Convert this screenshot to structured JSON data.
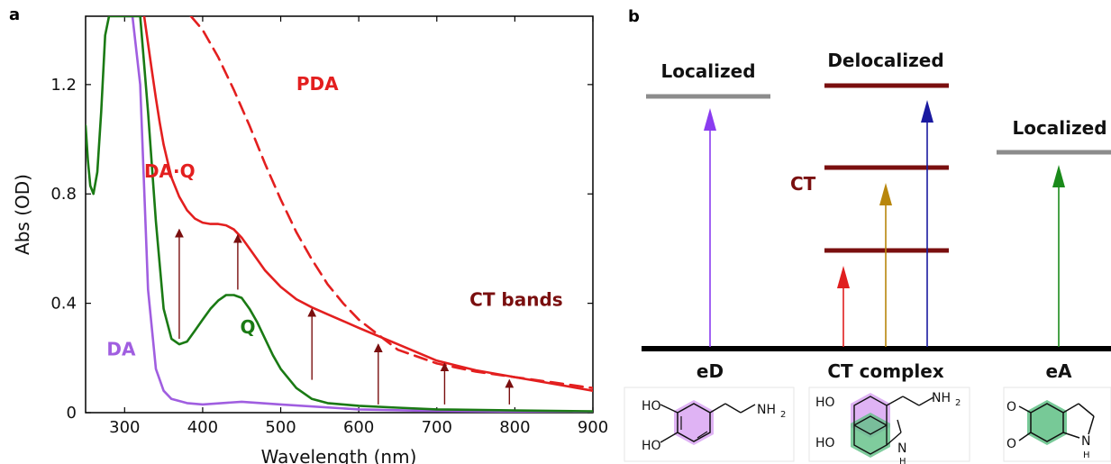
{
  "chart_data": [
    {
      "panel": "a",
      "type": "line",
      "xlabel": "Wavelength (nm)",
      "ylabel": "Abs (OD)",
      "xlim": [
        250,
        900
      ],
      "ylim": [
        0,
        1.45
      ],
      "xticks": [
        300,
        400,
        500,
        600,
        700,
        800,
        900
      ],
      "yticks": [
        0,
        0.4,
        0.8,
        1.2
      ],
      "grid": false,
      "series": [
        {
          "name": "DA",
          "color": "#a05ee0",
          "dash": false,
          "x": [
            300,
            310,
            320,
            330,
            340,
            350,
            360,
            380,
            400,
            450,
            500,
            600,
            700,
            800,
            900
          ],
          "y": [
            1.45,
            1.45,
            1.2,
            0.45,
            0.16,
            0.08,
            0.05,
            0.035,
            0.03,
            0.04,
            0.03,
            0.012,
            0.006,
            0.004,
            0.003
          ]
        },
        {
          "name": "Q",
          "color": "#1a7a14",
          "dash": false,
          "x": [
            250,
            253,
            256,
            260,
            265,
            270,
            275,
            280,
            285,
            290,
            300,
            310,
            320,
            330,
            340,
            350,
            360,
            370,
            380,
            390,
            400,
            410,
            420,
            430,
            440,
            450,
            460,
            470,
            480,
            490,
            500,
            520,
            540,
            560,
            580,
            600,
            650,
            700,
            800,
            900
          ],
          "y": [
            1.05,
            0.92,
            0.83,
            0.8,
            0.88,
            1.1,
            1.38,
            1.45,
            1.45,
            1.45,
            1.45,
            1.45,
            1.45,
            1.1,
            0.7,
            0.38,
            0.27,
            0.25,
            0.26,
            0.3,
            0.34,
            0.38,
            0.41,
            0.43,
            0.43,
            0.42,
            0.38,
            0.33,
            0.27,
            0.21,
            0.16,
            0.09,
            0.05,
            0.035,
            0.03,
            0.025,
            0.018,
            0.012,
            0.008,
            0.005
          ]
        },
        {
          "name": "DA·Q",
          "color": "#e31f1f",
          "dash": false,
          "x": [
            325,
            330,
            335,
            340,
            345,
            350,
            355,
            360,
            370,
            380,
            390,
            400,
            410,
            420,
            430,
            440,
            450,
            460,
            470,
            480,
            500,
            520,
            540,
            560,
            580,
            600,
            650,
            700,
            750,
            800,
            850,
            900
          ],
          "y": [
            1.45,
            1.35,
            1.25,
            1.15,
            1.06,
            0.98,
            0.92,
            0.86,
            0.79,
            0.74,
            0.71,
            0.695,
            0.69,
            0.69,
            0.685,
            0.67,
            0.64,
            0.6,
            0.56,
            0.52,
            0.46,
            0.415,
            0.385,
            0.36,
            0.335,
            0.31,
            0.25,
            0.19,
            0.155,
            0.13,
            0.105,
            0.08
          ]
        },
        {
          "name": "PDA",
          "color": "#e31f1f",
          "dash": true,
          "x": [
            385,
            400,
            420,
            440,
            460,
            480,
            500,
            520,
            540,
            560,
            580,
            600,
            650,
            700,
            750,
            800,
            850,
            900
          ],
          "y": [
            1.45,
            1.4,
            1.3,
            1.18,
            1.05,
            0.91,
            0.78,
            0.66,
            0.56,
            0.47,
            0.4,
            0.34,
            0.23,
            0.18,
            0.15,
            0.13,
            0.11,
            0.09
          ]
        }
      ],
      "arrows": {
        "color": "#7a0f0f",
        "items": [
          {
            "x": 370,
            "y0": 0.27,
            "y1": 0.67
          },
          {
            "x": 445,
            "y0": 0.45,
            "y1": 0.65
          },
          {
            "x": 540,
            "y0": 0.12,
            "y1": 0.38
          },
          {
            "x": 625,
            "y0": 0.03,
            "y1": 0.25
          },
          {
            "x": 710,
            "y0": 0.03,
            "y1": 0.18
          },
          {
            "x": 793,
            "y0": 0.03,
            "y1": 0.12
          }
        ]
      },
      "labels": [
        {
          "text": "PDA",
          "x": 520,
          "y": 1.18,
          "color": "#e31f1f"
        },
        {
          "text": "DA·Q",
          "x": 325,
          "y": 0.86,
          "color": "#e31f1f"
        },
        {
          "text": "CT bands",
          "x": 742,
          "y": 0.39,
          "color": "#7a0f0f"
        },
        {
          "text": "Q",
          "x": 448,
          "y": 0.29,
          "color": "#1a7a14"
        },
        {
          "text": "DA",
          "x": 277,
          "y": 0.21,
          "color": "#a05ee0"
        }
      ]
    }
  ],
  "panel_a_letter": "a",
  "panel_b": {
    "letter": "b",
    "groups": [
      {
        "title": "Localized",
        "bottom_label": "eD",
        "levels": [
          {
            "color": "#8c8c8c"
          }
        ],
        "arrows": [
          {
            "color": "#8a3cf0"
          }
        ]
      },
      {
        "title": "Delocalized",
        "bottom_label": "CT complex",
        "ct_label": "CT",
        "ct_color": "#7a0f0f",
        "levels": [
          {
            "color": "#7a0f0f"
          },
          {
            "color": "#7a0f0f"
          },
          {
            "color": "#7a0f0f"
          }
        ],
        "arrows": [
          {
            "color": "#e01f1f"
          },
          {
            "color": "#b8860b"
          },
          {
            "color": "#1a1aa0"
          }
        ]
      },
      {
        "title": "Localized",
        "bottom_label": "eA",
        "levels": [
          {
            "color": "#8c8c8c"
          }
        ],
        "arrows": [
          {
            "color": "#1a8a1a"
          }
        ]
      }
    ],
    "molecules": {
      "eD": {
        "labels": [
          "HO",
          "HO",
          "NH",
          "2"
        ],
        "highlight": "#d9a6f2"
      },
      "ct": {
        "labels": [
          "HO",
          "HO",
          "NH",
          "2",
          "N",
          "H"
        ],
        "highlight_top": "#d9a6f2",
        "highlight_bottom": "#5fbf85"
      },
      "eA": {
        "labels": [
          "O",
          "O",
          "N",
          "H"
        ],
        "highlight": "#5fbf85"
      }
    }
  }
}
